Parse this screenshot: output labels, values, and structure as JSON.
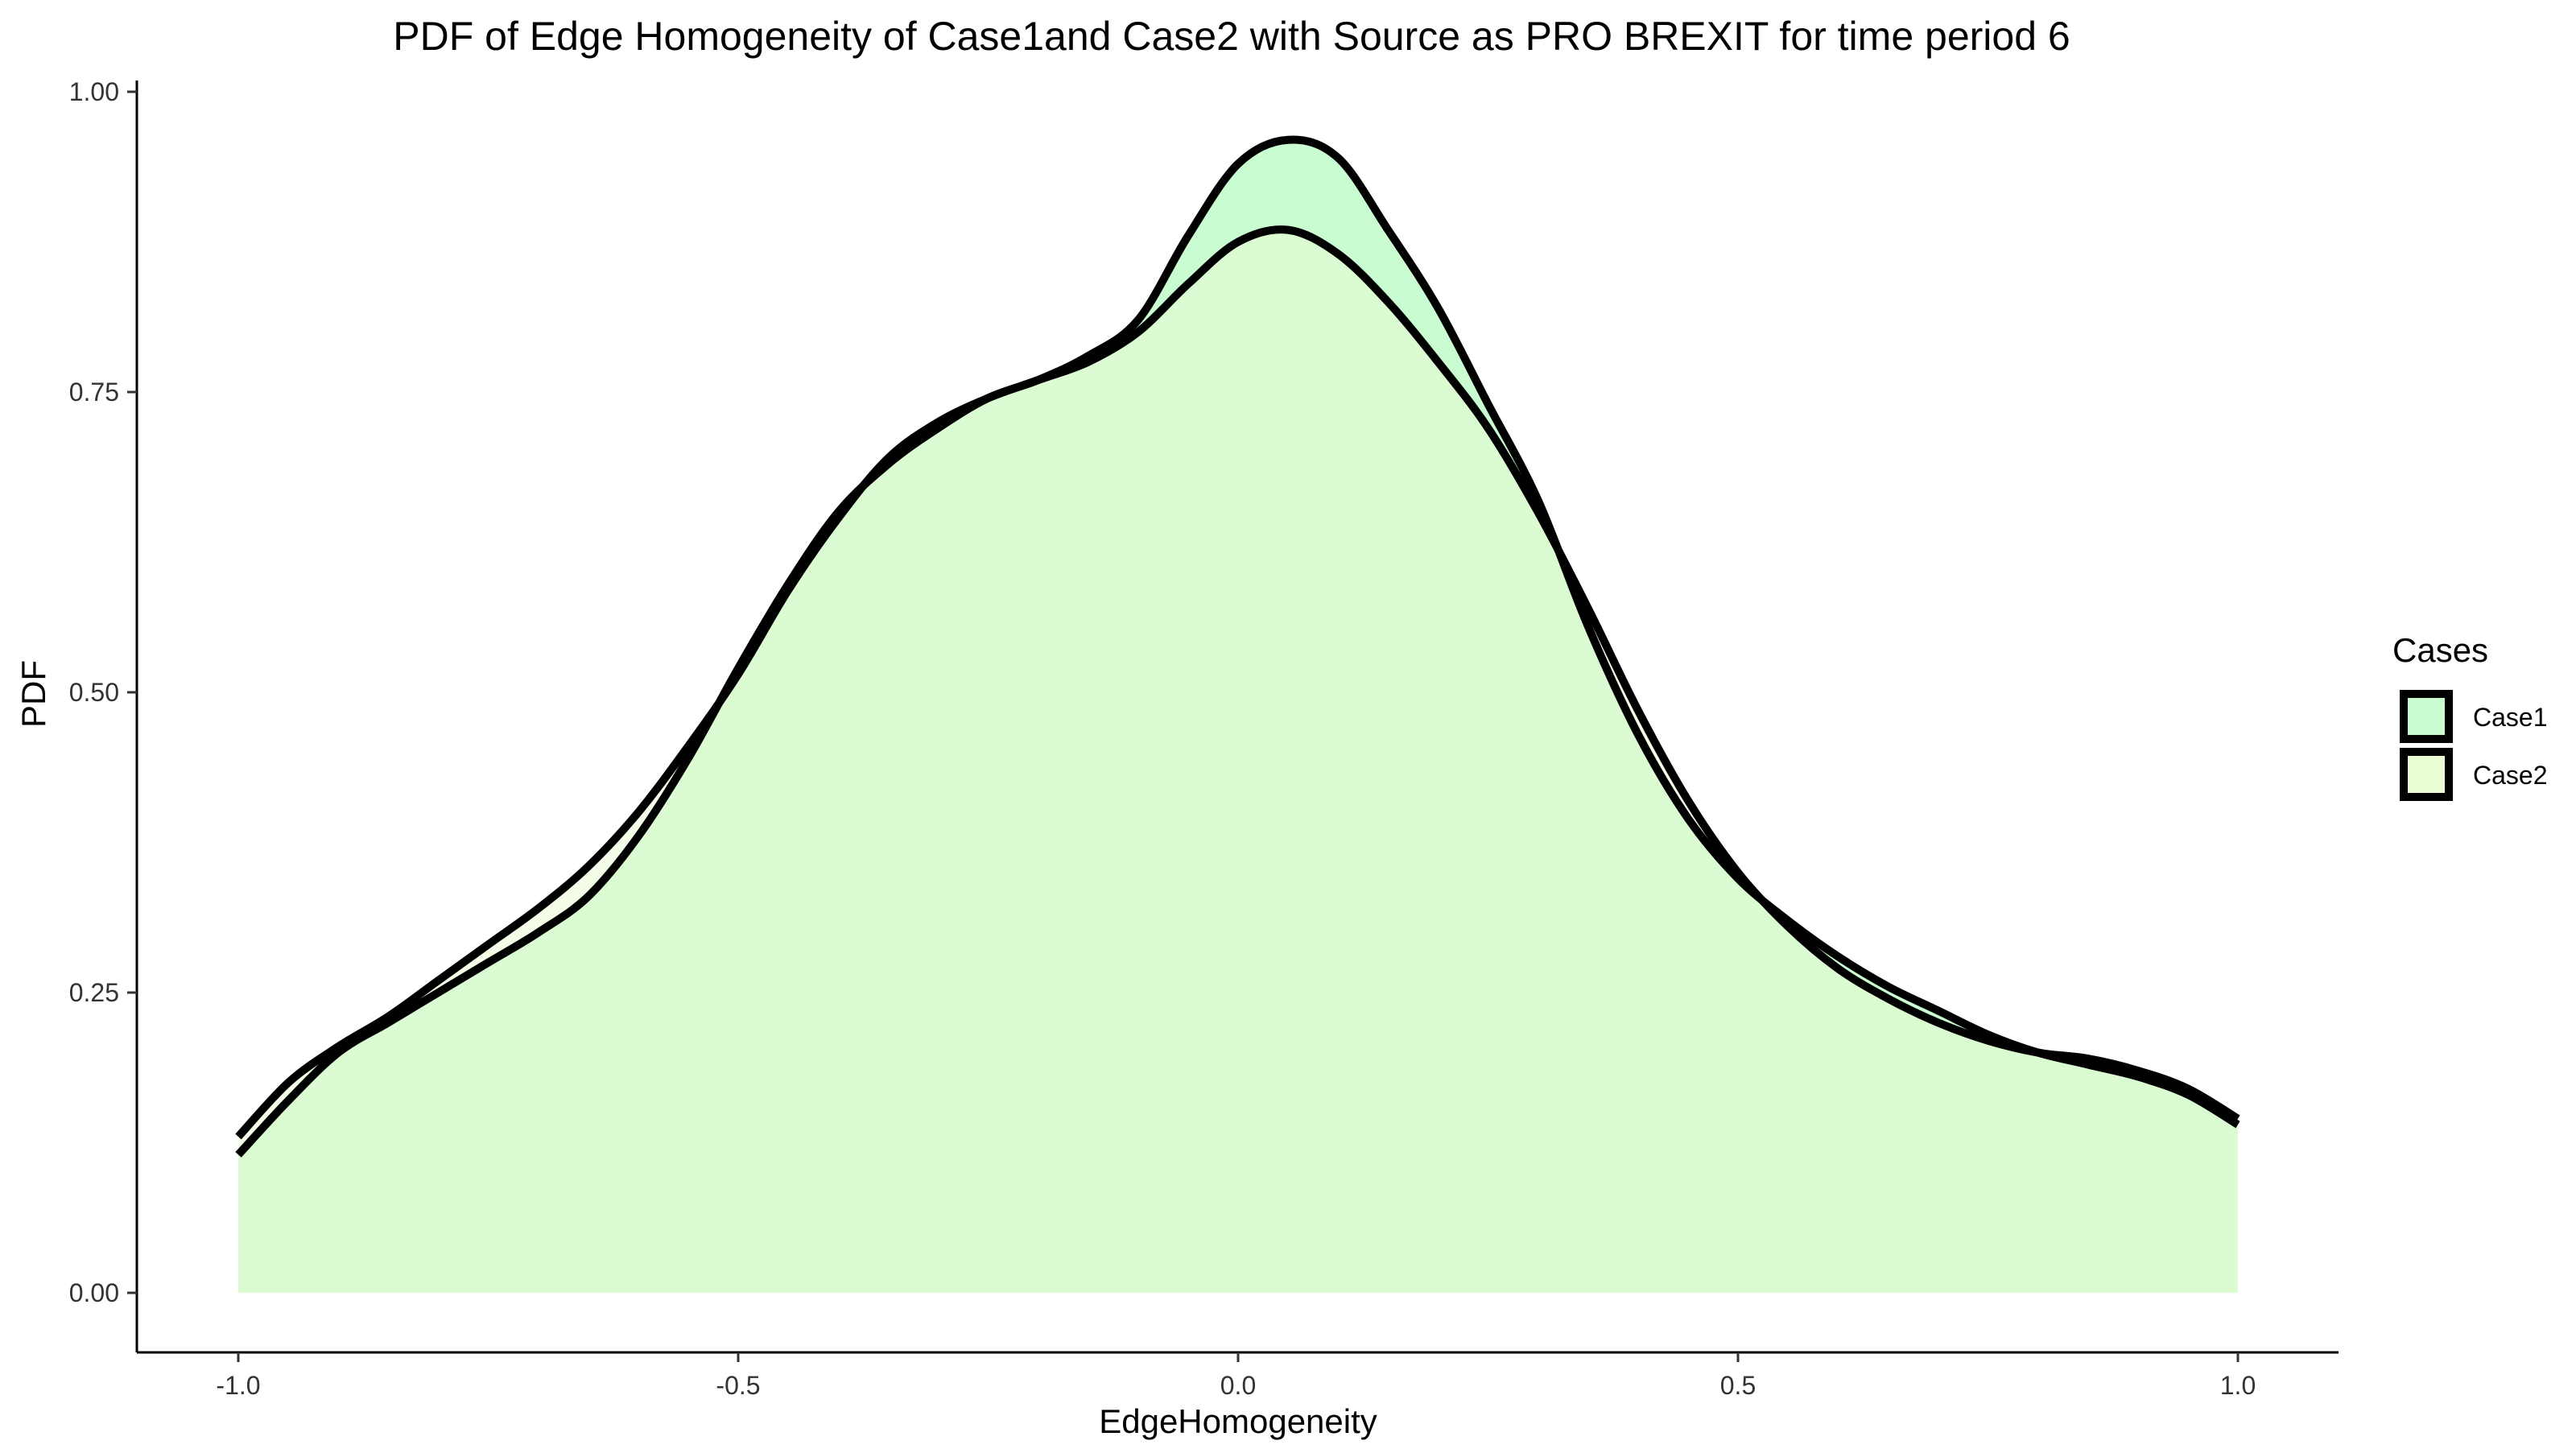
{
  "chart_data": {
    "type": "area",
    "title": "PDF of Edge Homogeneity of Case1and Case2 with Source as PRO BREXIT for time period 6",
    "xlabel": "EdgeHomogeneity",
    "ylabel": "PDF",
    "xlim": [
      -1.0,
      1.0
    ],
    "ylim": [
      0.0,
      1.0
    ],
    "x_ticks": [
      -1.0,
      -0.5,
      0.0,
      0.5,
      1.0
    ],
    "x_tick_labels": [
      "-1.0",
      "-0.5",
      "0.0",
      "0.5",
      "1.0"
    ],
    "y_ticks": [
      0.0,
      0.25,
      0.5,
      0.75,
      1.0
    ],
    "y_tick_labels": [
      "0.00",
      "0.25",
      "0.50",
      "0.75",
      "1.00"
    ],
    "grid": false,
    "legend": {
      "title": "Cases",
      "position": "right"
    },
    "series": [
      {
        "name": "Case1",
        "color": "#c9fcd0",
        "x": [
          -1.0,
          -0.95,
          -0.9,
          -0.85,
          -0.8,
          -0.75,
          -0.7,
          -0.65,
          -0.6,
          -0.55,
          -0.5,
          -0.45,
          -0.4,
          -0.35,
          -0.3,
          -0.25,
          -0.2,
          -0.15,
          -0.1,
          -0.05,
          0.0,
          0.05,
          0.1,
          0.15,
          0.2,
          0.25,
          0.3,
          0.35,
          0.4,
          0.45,
          0.5,
          0.55,
          0.6,
          0.65,
          0.7,
          0.75,
          0.8,
          0.85,
          0.9,
          0.95,
          1.0
        ],
        "y": [
          0.115,
          0.16,
          0.2,
          0.225,
          0.25,
          0.275,
          0.3,
          0.33,
          0.38,
          0.445,
          0.52,
          0.59,
          0.65,
          0.69,
          0.72,
          0.745,
          0.76,
          0.78,
          0.81,
          0.88,
          0.94,
          0.96,
          0.945,
          0.885,
          0.82,
          0.74,
          0.66,
          0.555,
          0.465,
          0.395,
          0.345,
          0.31,
          0.28,
          0.255,
          0.235,
          0.215,
          0.2,
          0.19,
          0.18,
          0.165,
          0.14
        ]
      },
      {
        "name": "Case2",
        "color": "#e9fcd4",
        "x": [
          -1.0,
          -0.95,
          -0.9,
          -0.85,
          -0.8,
          -0.75,
          -0.7,
          -0.65,
          -0.6,
          -0.55,
          -0.5,
          -0.45,
          -0.4,
          -0.35,
          -0.3,
          -0.25,
          -0.2,
          -0.15,
          -0.1,
          -0.05,
          0.0,
          0.05,
          0.1,
          0.15,
          0.2,
          0.25,
          0.3,
          0.35,
          0.4,
          0.45,
          0.5,
          0.55,
          0.6,
          0.65,
          0.7,
          0.75,
          0.8,
          0.85,
          0.9,
          0.95,
          1.0
        ],
        "y": [
          0.13,
          0.175,
          0.205,
          0.23,
          0.26,
          0.29,
          0.32,
          0.355,
          0.4,
          0.455,
          0.515,
          0.585,
          0.645,
          0.695,
          0.725,
          0.745,
          0.76,
          0.775,
          0.8,
          0.84,
          0.875,
          0.885,
          0.865,
          0.825,
          0.775,
          0.72,
          0.65,
          0.57,
          0.485,
          0.41,
          0.35,
          0.305,
          0.27,
          0.245,
          0.225,
          0.21,
          0.2,
          0.195,
          0.185,
          0.17,
          0.145
        ]
      }
    ]
  }
}
